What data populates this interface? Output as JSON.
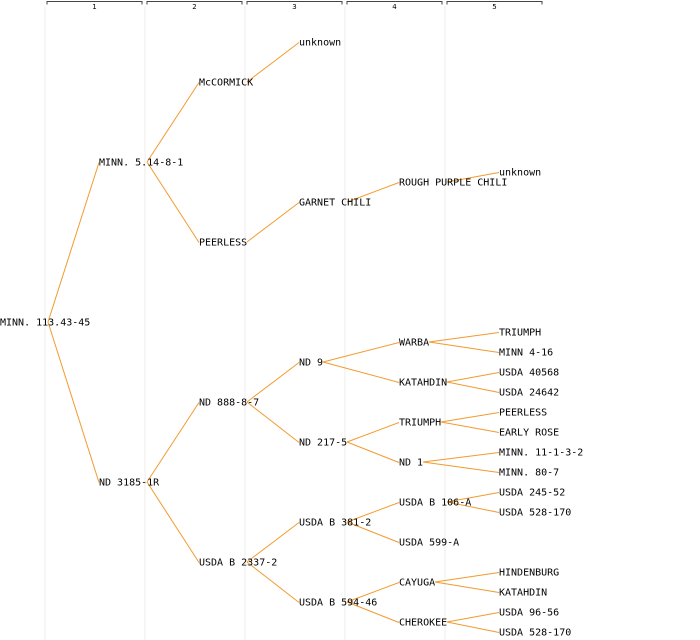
{
  "colors": {
    "edge": "#f39a2c",
    "guide": "#ececec",
    "header": "#444444",
    "text": "#000000",
    "link": "#2f2fc8"
  },
  "generations": [
    "1",
    "2",
    "3",
    "4",
    "5"
  ],
  "tree": {
    "label": "MINN. 113.43-45",
    "children": [
      {
        "label": "MINN. 5.14-8-1",
        "children": [
          {
            "label": "McCORMICK",
            "children": [
              {
                "label": "unknown"
              }
            ]
          },
          {
            "label": "PEERLESS",
            "children": [
              {
                "label": "GARNET CHILI",
                "children": [
                  {
                    "label": "ROUGH PURPLE CHILI",
                    "children": [
                      {
                        "label": "unknown"
                      }
                    ]
                  }
                ]
              }
            ]
          }
        ]
      },
      {
        "label": "ND 3185-1R",
        "children": [
          {
            "label": "ND 888-8-7",
            "children": [
              {
                "label": "ND 9",
                "children": [
                  {
                    "label": "WARBA",
                    "children": [
                      {
                        "label": "TRIUMPH"
                      },
                      {
                        "label": "MINN 4-16"
                      }
                    ]
                  },
                  {
                    "label": "KATAHDIN",
                    "children": [
                      {
                        "label": "USDA 40568"
                      },
                      {
                        "label": "USDA 24642"
                      }
                    ]
                  }
                ]
              },
              {
                "label": "ND 217-5",
                "children": [
                  {
                    "label": "TRIUMPH",
                    "link": true,
                    "children": [
                      {
                        "label": "PEERLESS"
                      },
                      {
                        "label": "EARLY ROSE"
                      }
                    ]
                  },
                  {
                    "label": "ND 1",
                    "children": [
                      {
                        "label": "MINN. 11-1-3-2"
                      },
                      {
                        "label": "MINN. 80-7"
                      }
                    ]
                  }
                ]
              }
            ]
          },
          {
            "label": "USDA B 2337-2",
            "children": [
              {
                "label": "USDA B 381-2",
                "children": [
                  {
                    "label": "USDA B 106-A",
                    "children": [
                      {
                        "label": "USDA 245-52"
                      },
                      {
                        "label": "USDA 528-170"
                      }
                    ]
                  },
                  {
                    "label": "USDA 599-A"
                  }
                ]
              },
              {
                "label": "USDA B 594-46",
                "children": [
                  {
                    "label": "CAYUGA",
                    "children": [
                      {
                        "label": "HINDENBURG"
                      },
                      {
                        "label": "KATAHDIN"
                      }
                    ]
                  },
                  {
                    "label": "CHEROKEE",
                    "children": [
                      {
                        "label": "USDA 96-56"
                      },
                      {
                        "label": "USDA 528-170"
                      }
                    ]
                  }
                ]
              }
            ]
          }
        ]
      }
    ]
  }
}
